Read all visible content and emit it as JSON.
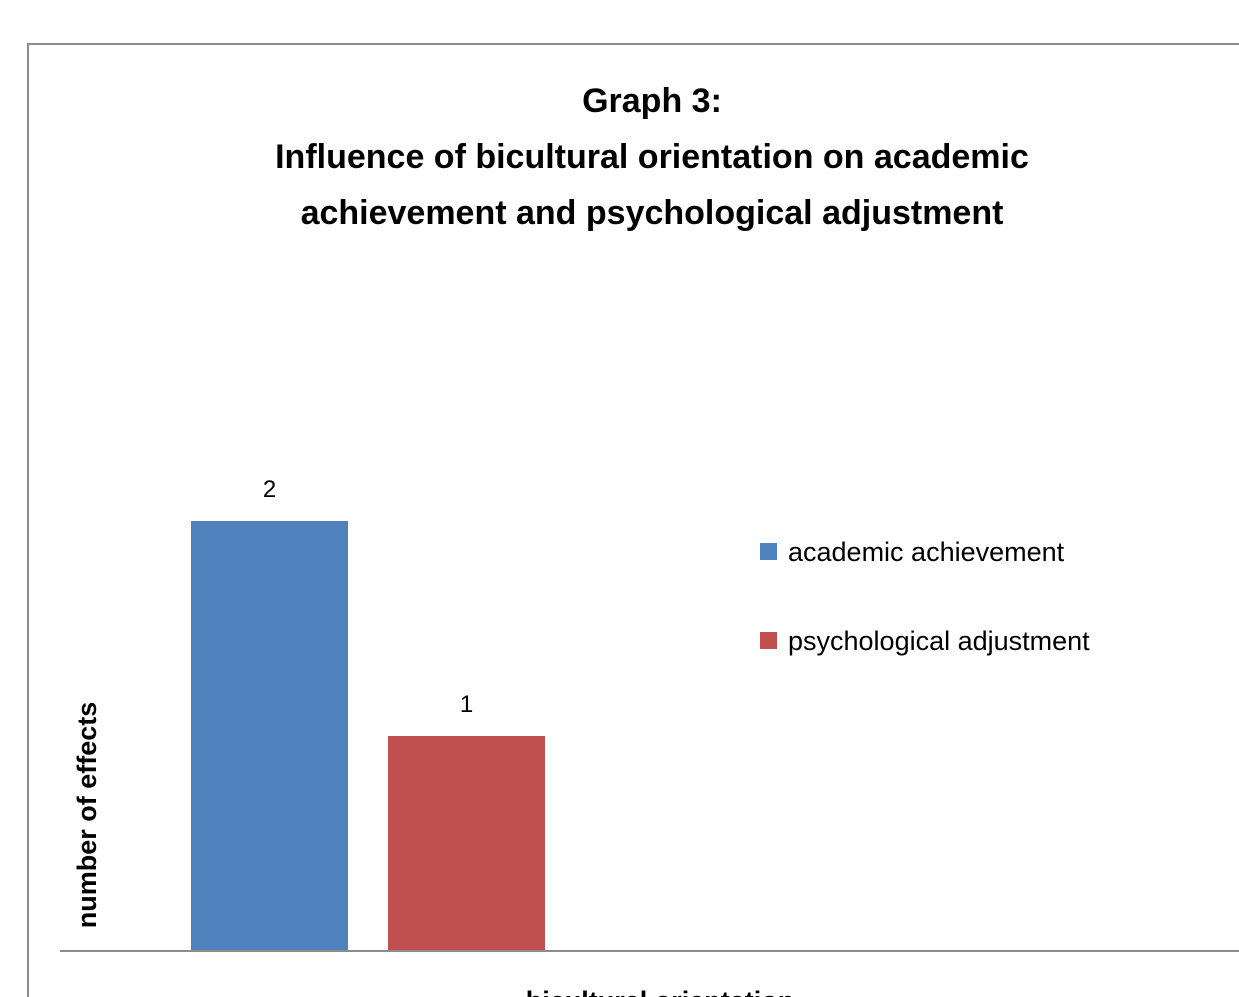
{
  "chart_data": {
    "type": "bar",
    "title": [
      "Graph 3:",
      "Influence of bicultural orientation on academic",
      "achievement and psychological adjustment"
    ],
    "xlabel": "bicultural orientation",
    "ylabel": "number  of effects",
    "categories": [
      null
    ],
    "series": [
      {
        "name": "academic achievement",
        "color": "#4f81bd",
        "values": [
          2
        ]
      },
      {
        "name": "psychological adjustment",
        "color": "#c0504d",
        "values": [
          1
        ]
      }
    ],
    "ylim": [
      0,
      3
    ],
    "legend": "right"
  }
}
